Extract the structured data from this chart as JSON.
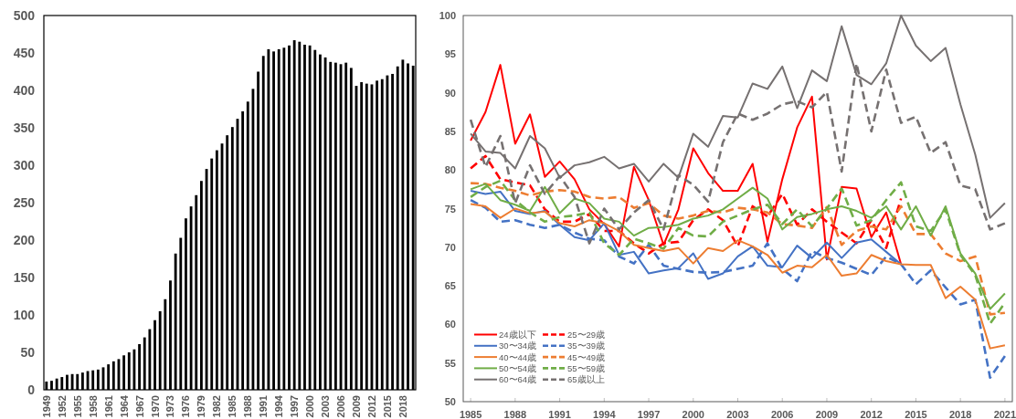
{
  "chart_data": [
    {
      "type": "bar",
      "color": "#000000",
      "grid": false,
      "categories": [
        "1949",
        null,
        null,
        "1952",
        null,
        null,
        "1955",
        null,
        null,
        "1958",
        null,
        null,
        "1961",
        null,
        null,
        "1964",
        null,
        null,
        "1967",
        null,
        null,
        "1970",
        null,
        null,
        "1973",
        null,
        null,
        "1976",
        null,
        null,
        "1979",
        null,
        null,
        "1982",
        null,
        null,
        "1985",
        null,
        null,
        "1988",
        null,
        null,
        "1991",
        null,
        null,
        "1994",
        null,
        null,
        "1997",
        null,
        null,
        "2000",
        null,
        null,
        "2003",
        null,
        null,
        "2006",
        null,
        null,
        "2009",
        null,
        null,
        "2012",
        null,
        null,
        "2015",
        null,
        null,
        "2018",
        null,
        null
      ],
      "values": [
        11,
        12,
        15,
        17,
        20,
        21,
        21,
        23,
        25,
        26,
        27,
        30,
        34,
        38,
        41,
        46,
        50,
        54,
        61,
        70,
        81,
        93,
        105,
        121,
        146,
        182,
        203,
        229,
        245,
        260,
        279,
        295,
        309,
        320,
        329,
        340,
        351,
        362,
        372,
        385,
        402,
        425,
        446,
        455,
        452,
        455,
        457,
        460,
        467,
        465,
        461,
        460,
        454,
        448,
        444,
        438,
        437,
        435,
        437,
        430,
        406,
        411,
        409,
        408,
        413,
        415,
        420,
        422,
        432,
        441,
        436,
        433
      ],
      "ylim": [
        0,
        500
      ],
      "yticks": [
        0,
        50,
        100,
        150,
        200,
        250,
        300,
        350,
        400,
        450,
        500
      ]
    },
    {
      "type": "line",
      "grid": false,
      "legend": "bottom left",
      "x": [
        1985,
        1986,
        1987,
        1988,
        1989,
        1990,
        1991,
        1992,
        1993,
        1994,
        1995,
        1996,
        1997,
        1998,
        1999,
        2000,
        2001,
        2002,
        2003,
        2004,
        2005,
        2006,
        2007,
        2008,
        2009,
        2010,
        2011,
        2012,
        2013,
        2014,
        2015,
        2016,
        2017,
        2018,
        2019,
        2020,
        2021
      ],
      "xlim": [
        1984.5,
        2021.5
      ],
      "xticks": [
        1985,
        1988,
        1991,
        1994,
        1997,
        2000,
        2003,
        2006,
        2009,
        2012,
        2015,
        2018,
        2021
      ],
      "ylim": [
        50,
        100
      ],
      "yticks": [
        50,
        55,
        60,
        65,
        70,
        75,
        80,
        85,
        90,
        95,
        100
      ],
      "series": [
        {
          "name": "24歳以下",
          "color": "#ff0000",
          "line_style": "solid",
          "values": [
            83.8,
            87.5,
            93.6,
            83.4,
            87.2,
            79.1,
            81.1,
            78.8,
            74.9,
            73.0,
            70.1,
            80.4,
            76.1,
            70.3,
            74.9,
            82.8,
            79.6,
            77.3,
            77.3,
            80.8,
            70.7,
            78.8,
            85.5,
            89.5,
            68.4,
            77.8,
            77.6,
            71.3,
            74.5,
            67.8,
            null,
            null,
            null,
            null,
            null,
            null,
            null
          ]
        },
        {
          "name": "25〜29歳",
          "color": "#ff0000",
          "line_style": "dashed",
          "values": [
            80.2,
            81.8,
            78.8,
            78.4,
            78.0,
            74.9,
            73.3,
            73.3,
            74.3,
            72.1,
            72.1,
            70.5,
            69.2,
            70.5,
            70.7,
            73.5,
            74.9,
            73.5,
            70.1,
            75.3,
            74.0,
            76.9,
            72.9,
            74.9,
            73.3,
            71.9,
            70.5,
            73.5,
            69.9,
            76.3,
            null,
            null,
            null,
            null,
            null,
            null,
            null
          ]
        },
        {
          "name": "30〜34歳",
          "color": "#4472c4",
          "line_style": "solid",
          "values": [
            77.3,
            76.9,
            77.2,
            74.7,
            74.3,
            74.7,
            72.9,
            71.3,
            70.9,
            73.1,
            69.0,
            69.4,
            66.6,
            67.0,
            67.3,
            69.2,
            65.9,
            66.6,
            68.8,
            70.1,
            67.6,
            67.4,
            70.2,
            68.6,
            70.6,
            68.6,
            70.6,
            71.0,
            69.4,
            67.8,
            null,
            null,
            null,
            null,
            null,
            null,
            null
          ]
        },
        {
          "name": "35〜39歳",
          "color": "#4472c4",
          "line_style": "dashed",
          "values": [
            76.1,
            75.1,
            73.3,
            73.5,
            72.9,
            72.5,
            72.9,
            71.9,
            71.1,
            70.9,
            68.8,
            67.9,
            70.3,
            67.6,
            67.2,
            66.8,
            66.7,
            66.8,
            67.2,
            67.6,
            70.5,
            67.2,
            65.6,
            69.5,
            68.6,
            68.0,
            67.2,
            66.4,
            68.8,
            67.8,
            65.2,
            67.0,
            64.8,
            62.6,
            63.2,
            53.1,
            55.9
          ]
        },
        {
          "name": "40〜44歳",
          "color": "#ed7d31",
          "line_style": "solid",
          "values": [
            75.6,
            75.3,
            73.8,
            75.0,
            74.4,
            74.6,
            73.1,
            72.7,
            73.5,
            73.1,
            72.1,
            70.3,
            69.9,
            69.5,
            69.9,
            67.9,
            69.9,
            69.5,
            70.9,
            70.1,
            69.0,
            66.7,
            67.6,
            67.4,
            69.0,
            66.3,
            66.6,
            69.0,
            68.2,
            67.8,
            67.7,
            67.7,
            63.4,
            64.9,
            63.2,
            56.9,
            57.3
          ]
        },
        {
          "name": "45〜49歳",
          "color": "#ed7d31",
          "line_style": "dashed",
          "values": [
            78.3,
            78.2,
            77.7,
            77.3,
            76.7,
            77.2,
            77.4,
            77.2,
            76.5,
            76.3,
            76.5,
            75.1,
            75.7,
            74.1,
            73.7,
            74.1,
            74.7,
            74.5,
            75.1,
            74.9,
            74.5,
            73.0,
            72.8,
            72.5,
            75.2,
            70.3,
            72.1,
            72.7,
            72.3,
            75.3,
            71.7,
            71.7,
            69.2,
            68.2,
            68.8,
            61.3,
            61.5
          ]
        },
        {
          "name": "50〜54歳",
          "color": "#70ad47",
          "line_style": "solid",
          "values": [
            77.5,
            78.2,
            76.1,
            75.5,
            74.7,
            77.8,
            74.4,
            76.3,
            75.7,
            73.7,
            73.3,
            71.5,
            72.5,
            72.6,
            72.9,
            73.7,
            74.1,
            74.9,
            76.3,
            77.7,
            76.3,
            72.3,
            73.9,
            74.3,
            74.9,
            75.3,
            74.7,
            73.8,
            75.3,
            72.3,
            75.3,
            71.5,
            75.3,
            69.2,
            66.6,
            62.0,
            64.0
          ]
        },
        {
          "name": "55〜59歳",
          "color": "#70ad47",
          "line_style": "dashed",
          "values": [
            76.5,
            77.8,
            78.6,
            76.1,
            74.5,
            73.3,
            73.9,
            74.1,
            74.5,
            70.5,
            69.0,
            71.1,
            70.5,
            69.8,
            72.5,
            71.5,
            71.4,
            73.3,
            74.1,
            74.9,
            75.5,
            73.0,
            74.9,
            72.7,
            75.0,
            77.6,
            72.8,
            73.5,
            76.1,
            78.4,
            72.7,
            72.1,
            74.9,
            69.0,
            66.4,
            60.1,
            62.8
          ]
        },
        {
          "name": "60〜64歳",
          "color": "#767171",
          "line_style": "solid",
          "values": [
            84.7,
            82.4,
            82.2,
            80.2,
            84.4,
            82.8,
            79.0,
            80.6,
            81.0,
            81.7,
            80.2,
            80.8,
            78.5,
            80.8,
            79.0,
            84.7,
            83.0,
            87.0,
            86.8,
            91.2,
            90.5,
            93.4,
            88.0,
            92.9,
            91.5,
            98.6,
            92.3,
            91.1,
            93.8,
            100,
            96.1,
            94.1,
            95.8,
            88.5,
            82.0,
            73.8,
            75.7
          ]
        },
        {
          "name": "65歳以上",
          "color": "#767171",
          "line_style": "dashed",
          "values": [
            86.5,
            80.4,
            84.4,
            75.7,
            80.6,
            76.9,
            79.2,
            76.5,
            70.5,
            75.0,
            72.3,
            74.5,
            76.1,
            72.3,
            79.3,
            78.1,
            75.9,
            83.6,
            87.3,
            86.5,
            87.3,
            88.5,
            88.9,
            88.1,
            90.1,
            79.8,
            93.8,
            85.0,
            93.0,
            86.1,
            86.9,
            82.2,
            83.6,
            78.0,
            77.5,
            72.3,
            73.1
          ]
        }
      ]
    }
  ]
}
